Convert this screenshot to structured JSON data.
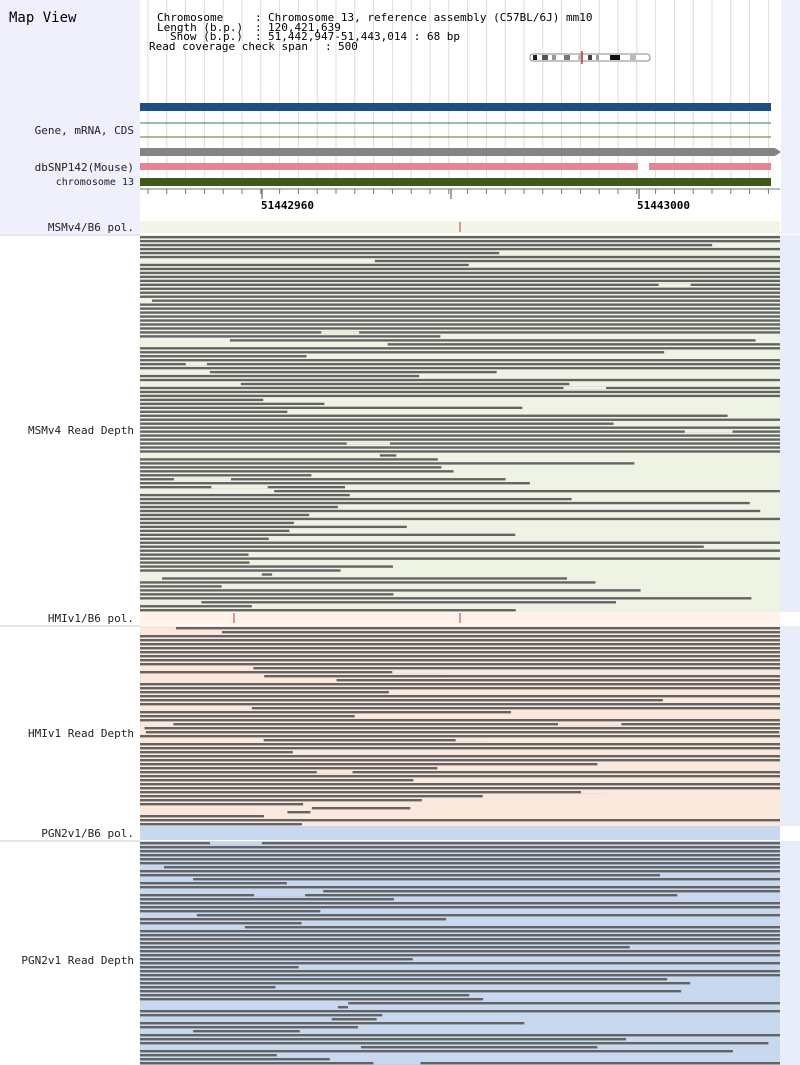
{
  "header": {
    "title": "Map View",
    "chromosome_label": "Chromosome",
    "chromosome_value": "Chromosome 13, reference assembly (C57BL/6J) mm10",
    "length_label": "Length (b.p.)",
    "length_value": "120,421,639",
    "show_label": "Show (b.p.)",
    "show_value": "51,442,947-51,443,014 : 68 bp",
    "coverage_label": "Read coverage check span",
    "coverage_value": "500",
    "separator": ":"
  },
  "annotation_tracks": {
    "gene_label": "Gene, mRNA, CDS",
    "snp_label": "dbSNP142(Mouse)",
    "chromosome_track_label": "chromosome 13"
  },
  "ruler": {
    "positions": [
      "51442960",
      "51443000"
    ]
  },
  "strains": [
    {
      "pol_label": "MSMv4/B6 pol.",
      "depth_label": "MSMv4 Read Depth"
    },
    {
      "pol_label": "HMIv1/B6 pol.",
      "depth_label": "HMIv1 Read Depth"
    },
    {
      "pol_label": "PGN2v1/B6 pol.",
      "depth_label": "PGN2v1 Read Depth"
    }
  ],
  "colors": {
    "header_bg": "#eff0fb",
    "gene_bar": "#1f4e82",
    "snp_bar": "#e58494",
    "chromosome_bar": "#3f5a18",
    "gray_bar": "#848484",
    "read": "#636363",
    "msm_bg": "#eef3e3",
    "hmi_bg": "#fbe8dc",
    "pgn_bg": "#c8d8ef",
    "variant_tick": "#c0392b"
  }
}
